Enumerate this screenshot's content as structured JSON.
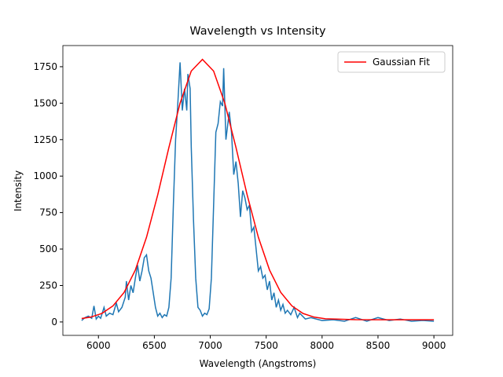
{
  "chart_data": {
    "type": "line",
    "title": "Wavelength vs Intensity",
    "xlabel": "Wavelength (Angstroms)",
    "ylabel": "Intensity",
    "xlim": [
      5682,
      9168
    ],
    "ylim": [
      -92,
      1895
    ],
    "xticks": [
      6000,
      6500,
      7000,
      7500,
      8000,
      8500,
      9000
    ],
    "yticks": [
      0,
      250,
      500,
      750,
      1000,
      1250,
      1500,
      1750
    ],
    "legend": "upper right",
    "series": [
      {
        "color": "#1f77b4",
        "x": [
          5850,
          5880,
          5910,
          5940,
          5960,
          5980,
          6000,
          6020,
          6050,
          6070,
          6100,
          6130,
          6160,
          6180,
          6210,
          6240,
          6250,
          6270,
          6290,
          6310,
          6330,
          6350,
          6370,
          6390,
          6410,
          6430,
          6450,
          6470,
          6490,
          6510,
          6530,
          6550,
          6570,
          6590,
          6610,
          6630,
          6650,
          6670,
          6690,
          6710,
          6730,
          6750,
          6770,
          6790,
          6800,
          6820,
          6830,
          6850,
          6870,
          6890,
          6910,
          6930,
          6950,
          6970,
          6990,
          7010,
          7030,
          7050,
          7070,
          7090,
          7110,
          7120,
          7140,
          7170,
          7190,
          7210,
          7230,
          7250,
          7270,
          7290,
          7310,
          7330,
          7350,
          7370,
          7390,
          7410,
          7430,
          7450,
          7470,
          7490,
          7510,
          7530,
          7550,
          7570,
          7590,
          7610,
          7630,
          7650,
          7670,
          7690,
          7720,
          7750,
          7780,
          7800,
          7850,
          7900,
          8000,
          8100,
          8200,
          8300,
          8400,
          8500,
          8600,
          8700,
          8800,
          8900,
          9000
        ],
        "values": [
          10,
          30,
          40,
          25,
          110,
          20,
          40,
          25,
          100,
          40,
          60,
          50,
          130,
          70,
          100,
          170,
          280,
          150,
          250,
          200,
          300,
          390,
          280,
          350,
          440,
          460,
          350,
          300,
          200,
          100,
          40,
          60,
          30,
          50,
          40,
          100,
          300,
          800,
          1250,
          1500,
          1780,
          1450,
          1600,
          1450,
          1700,
          1600,
          1200,
          700,
          300,
          100,
          80,
          40,
          60,
          50,
          90,
          300,
          800,
          1300,
          1360,
          1510,
          1480,
          1740,
          1250,
          1440,
          1300,
          1010,
          1100,
          950,
          720,
          900,
          850,
          770,
          800,
          620,
          650,
          500,
          350,
          380,
          300,
          320,
          220,
          280,
          150,
          200,
          100,
          150,
          80,
          120,
          60,
          80,
          50,
          100,
          30,
          60,
          20,
          30,
          10,
          15,
          5,
          30,
          5,
          30,
          10,
          20,
          5,
          10,
          5
        ]
      },
      {
        "name": "Gaussian Fit",
        "color": "red",
        "x": [
          5850,
          5930,
          6030,
          6130,
          6230,
          6330,
          6430,
          6530,
          6630,
          6730,
          6830,
          6930,
          7030,
          7130,
          7230,
          7330,
          7430,
          7530,
          7630,
          7730,
          7830,
          7930,
          8030,
          8300,
          8600,
          9000
        ],
        "values": [
          24,
          33,
          58,
          110,
          203,
          356,
          581,
          871,
          1196,
          1500,
          1720,
          1800,
          1720,
          1500,
          1196,
          871,
          581,
          356,
          203,
          110,
          58,
          33,
          22,
          16,
          15,
          15
        ]
      }
    ]
  }
}
